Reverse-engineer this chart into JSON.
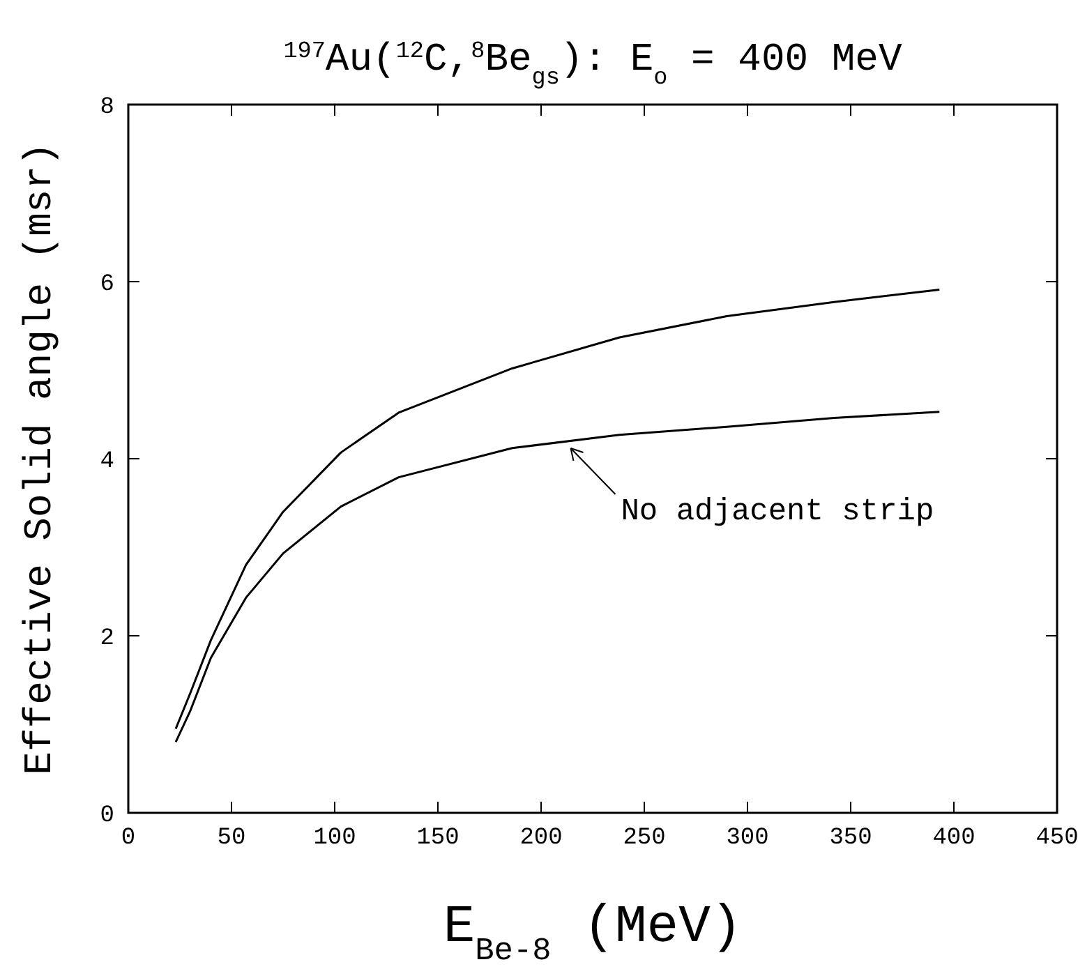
{
  "chart_data": {
    "type": "line",
    "title": "$^{197}$Au($^{12}$C,$^{8}$Be$_{gs}$): E$_{o}$ = 400 MeV",
    "xlabel": "E$_{Be-8}$ (MeV)",
    "ylabel": "Effective Solid angle (msr)",
    "x": [
      23,
      30,
      40,
      57,
      75,
      103,
      131,
      186,
      238,
      290,
      342,
      393
    ],
    "series": [
      {
        "color": "#000000",
        "values": [
          0.95,
          1.35,
          1.95,
          2.8,
          3.4,
          4.07,
          4.52,
          5.02,
          5.37,
          5.61,
          5.77,
          5.91
        ]
      },
      {
        "color": "#000000",
        "values": [
          0.8,
          1.15,
          1.75,
          2.43,
          2.93,
          3.46,
          3.79,
          4.12,
          4.27,
          4.36,
          4.46,
          4.53
        ]
      }
    ],
    "xlim": [
      0,
      450
    ],
    "xticks": [
      0,
      50,
      100,
      150,
      200,
      250,
      300,
      350,
      400,
      450
    ],
    "ylim": [
      0,
      8
    ],
    "yticks": [
      0,
      2,
      4,
      6,
      8
    ],
    "grid": false,
    "marker": "none",
    "line_style": "solid",
    "annotations": [
      {
        "text": "No adjacent strip",
        "x": 213,
        "y": 4.15
      }
    ]
  }
}
